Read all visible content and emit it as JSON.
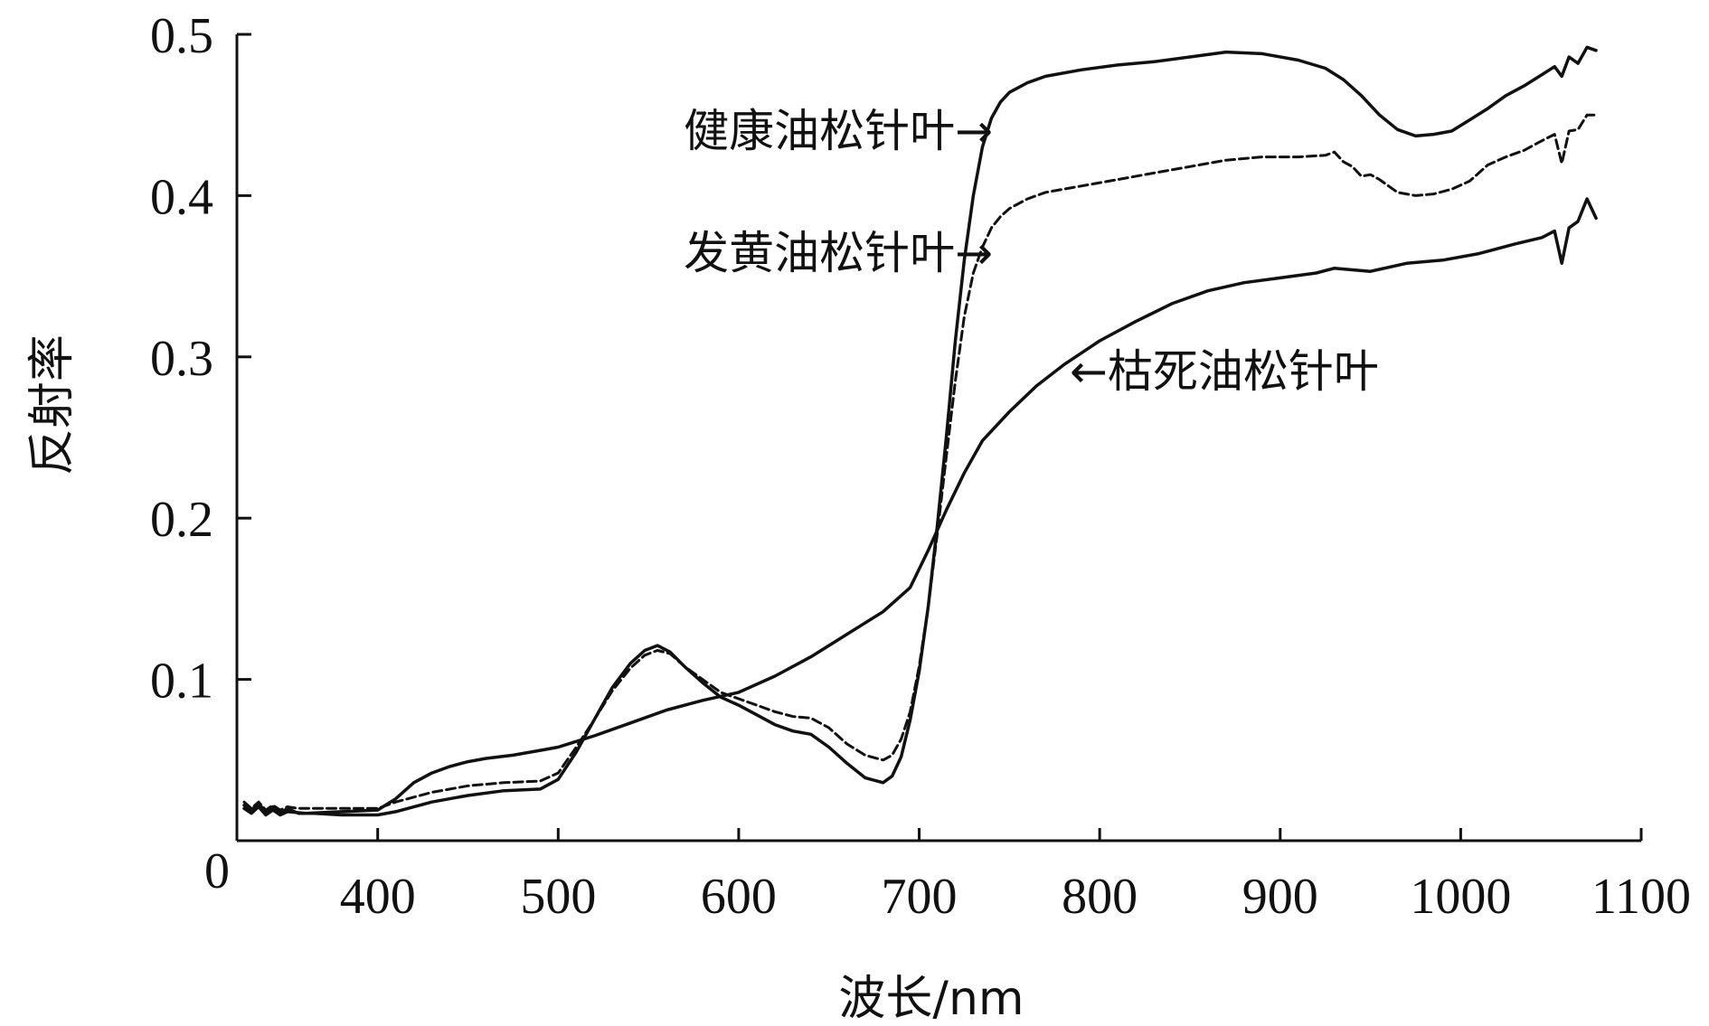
{
  "chart_data": {
    "type": "line",
    "title": "",
    "xlabel": "波长/nm",
    "ylabel": "反射率",
    "xlim": [
      322,
      1100
    ],
    "ylim": [
      0,
      0.5
    ],
    "origin_label": "0",
    "xticks": [
      400,
      500,
      600,
      700,
      800,
      900,
      1000,
      1100
    ],
    "xtick_labels": [
      "400",
      "500",
      "600",
      "700",
      "800",
      "900",
      "1000",
      "1100"
    ],
    "yticks": [
      0.1,
      0.2,
      0.3,
      0.4,
      0.5
    ],
    "ytick_labels": [
      "0.1",
      "0.2",
      "0.3",
      "0.4",
      "0.5"
    ],
    "series": [
      {
        "name": "健康油松针叶",
        "style": "solid",
        "annotation": "健康油松针叶→",
        "points": [
          [
            326,
            0.022
          ],
          [
            330,
            0.019
          ],
          [
            334,
            0.023
          ],
          [
            338,
            0.018
          ],
          [
            342,
            0.021
          ],
          [
            346,
            0.017
          ],
          [
            350,
            0.02
          ],
          [
            356,
            0.017
          ],
          [
            365,
            0.017
          ],
          [
            380,
            0.016
          ],
          [
            400,
            0.016
          ],
          [
            410,
            0.018
          ],
          [
            430,
            0.024
          ],
          [
            450,
            0.028
          ],
          [
            470,
            0.031
          ],
          [
            490,
            0.032
          ],
          [
            500,
            0.038
          ],
          [
            510,
            0.055
          ],
          [
            520,
            0.075
          ],
          [
            530,
            0.095
          ],
          [
            540,
            0.11
          ],
          [
            548,
            0.118
          ],
          [
            555,
            0.121
          ],
          [
            562,
            0.117
          ],
          [
            570,
            0.108
          ],
          [
            580,
            0.098
          ],
          [
            590,
            0.089
          ],
          [
            600,
            0.084
          ],
          [
            610,
            0.078
          ],
          [
            620,
            0.072
          ],
          [
            630,
            0.068
          ],
          [
            640,
            0.066
          ],
          [
            650,
            0.058
          ],
          [
            660,
            0.048
          ],
          [
            670,
            0.039
          ],
          [
            680,
            0.036
          ],
          [
            685,
            0.04
          ],
          [
            690,
            0.052
          ],
          [
            695,
            0.075
          ],
          [
            700,
            0.105
          ],
          [
            705,
            0.145
          ],
          [
            710,
            0.195
          ],
          [
            715,
            0.25
          ],
          [
            720,
            0.31
          ],
          [
            725,
            0.36
          ],
          [
            730,
            0.4
          ],
          [
            735,
            0.43
          ],
          [
            740,
            0.448
          ],
          [
            745,
            0.458
          ],
          [
            750,
            0.464
          ],
          [
            760,
            0.47
          ],
          [
            770,
            0.474
          ],
          [
            790,
            0.478
          ],
          [
            810,
            0.481
          ],
          [
            830,
            0.483
          ],
          [
            850,
            0.486
          ],
          [
            870,
            0.489
          ],
          [
            890,
            0.488
          ],
          [
            910,
            0.484
          ],
          [
            925,
            0.479
          ],
          [
            935,
            0.472
          ],
          [
            945,
            0.462
          ],
          [
            955,
            0.45
          ],
          [
            965,
            0.441
          ],
          [
            975,
            0.437
          ],
          [
            985,
            0.438
          ],
          [
            995,
            0.44
          ],
          [
            1005,
            0.447
          ],
          [
            1015,
            0.454
          ],
          [
            1025,
            0.462
          ],
          [
            1035,
            0.468
          ],
          [
            1045,
            0.475
          ],
          [
            1052,
            0.48
          ],
          [
            1056,
            0.474
          ],
          [
            1060,
            0.486
          ],
          [
            1065,
            0.482
          ],
          [
            1070,
            0.492
          ],
          [
            1075,
            0.49
          ]
        ]
      },
      {
        "name": "发黄油松针叶",
        "style": "dashed",
        "annotation": "发黄油松针叶→",
        "points": [
          [
            326,
            0.024
          ],
          [
            330,
            0.02
          ],
          [
            334,
            0.024
          ],
          [
            338,
            0.019
          ],
          [
            342,
            0.022
          ],
          [
            346,
            0.019
          ],
          [
            350,
            0.021
          ],
          [
            356,
            0.02
          ],
          [
            365,
            0.02
          ],
          [
            380,
            0.02
          ],
          [
            400,
            0.02
          ],
          [
            410,
            0.024
          ],
          [
            430,
            0.03
          ],
          [
            450,
            0.034
          ],
          [
            470,
            0.036
          ],
          [
            490,
            0.037
          ],
          [
            500,
            0.042
          ],
          [
            510,
            0.058
          ],
          [
            520,
            0.075
          ],
          [
            530,
            0.093
          ],
          [
            540,
            0.107
          ],
          [
            548,
            0.115
          ],
          [
            555,
            0.118
          ],
          [
            562,
            0.116
          ],
          [
            570,
            0.108
          ],
          [
            580,
            0.1
          ],
          [
            590,
            0.092
          ],
          [
            600,
            0.088
          ],
          [
            610,
            0.084
          ],
          [
            620,
            0.08
          ],
          [
            630,
            0.077
          ],
          [
            640,
            0.076
          ],
          [
            650,
            0.07
          ],
          [
            660,
            0.06
          ],
          [
            670,
            0.053
          ],
          [
            680,
            0.05
          ],
          [
            685,
            0.053
          ],
          [
            690,
            0.063
          ],
          [
            695,
            0.08
          ],
          [
            700,
            0.108
          ],
          [
            705,
            0.145
          ],
          [
            710,
            0.19
          ],
          [
            715,
            0.238
          ],
          [
            720,
            0.285
          ],
          [
            725,
            0.325
          ],
          [
            730,
            0.352
          ],
          [
            735,
            0.368
          ],
          [
            740,
            0.38
          ],
          [
            745,
            0.387
          ],
          [
            750,
            0.392
          ],
          [
            760,
            0.398
          ],
          [
            770,
            0.402
          ],
          [
            790,
            0.406
          ],
          [
            810,
            0.41
          ],
          [
            830,
            0.414
          ],
          [
            850,
            0.418
          ],
          [
            870,
            0.422
          ],
          [
            890,
            0.424
          ],
          [
            910,
            0.424
          ],
          [
            925,
            0.425
          ],
          [
            930,
            0.427
          ],
          [
            935,
            0.421
          ],
          [
            940,
            0.418
          ],
          [
            945,
            0.412
          ],
          [
            950,
            0.413
          ],
          [
            955,
            0.41
          ],
          [
            960,
            0.406
          ],
          [
            965,
            0.402
          ],
          [
            975,
            0.4
          ],
          [
            985,
            0.401
          ],
          [
            995,
            0.404
          ],
          [
            1005,
            0.409
          ],
          [
            1015,
            0.419
          ],
          [
            1025,
            0.424
          ],
          [
            1035,
            0.428
          ],
          [
            1045,
            0.434
          ],
          [
            1052,
            0.438
          ],
          [
            1056,
            0.42
          ],
          [
            1060,
            0.44
          ],
          [
            1065,
            0.441
          ],
          [
            1070,
            0.45
          ],
          [
            1075,
            0.45
          ]
        ]
      },
      {
        "name": "枯死油松针叶",
        "style": "solid",
        "annotation": "←枯死油松针叶",
        "points": [
          [
            326,
            0.02
          ],
          [
            330,
            0.017
          ],
          [
            334,
            0.021
          ],
          [
            338,
            0.016
          ],
          [
            342,
            0.019
          ],
          [
            346,
            0.016
          ],
          [
            350,
            0.018
          ],
          [
            360,
            0.017
          ],
          [
            380,
            0.018
          ],
          [
            400,
            0.019
          ],
          [
            410,
            0.026
          ],
          [
            420,
            0.036
          ],
          [
            430,
            0.042
          ],
          [
            440,
            0.046
          ],
          [
            450,
            0.049
          ],
          [
            460,
            0.051
          ],
          [
            475,
            0.053
          ],
          [
            490,
            0.056
          ],
          [
            500,
            0.058
          ],
          [
            520,
            0.065
          ],
          [
            540,
            0.073
          ],
          [
            560,
            0.081
          ],
          [
            580,
            0.087
          ],
          [
            600,
            0.092
          ],
          [
            620,
            0.102
          ],
          [
            640,
            0.114
          ],
          [
            660,
            0.128
          ],
          [
            680,
            0.142
          ],
          [
            695,
            0.157
          ],
          [
            705,
            0.18
          ],
          [
            715,
            0.205
          ],
          [
            725,
            0.228
          ],
          [
            735,
            0.248
          ],
          [
            750,
            0.266
          ],
          [
            765,
            0.282
          ],
          [
            780,
            0.295
          ],
          [
            800,
            0.31
          ],
          [
            820,
            0.322
          ],
          [
            840,
            0.333
          ],
          [
            860,
            0.341
          ],
          [
            880,
            0.346
          ],
          [
            900,
            0.349
          ],
          [
            920,
            0.352
          ],
          [
            930,
            0.355
          ],
          [
            950,
            0.353
          ],
          [
            970,
            0.358
          ],
          [
            990,
            0.36
          ],
          [
            1010,
            0.364
          ],
          [
            1030,
            0.37
          ],
          [
            1045,
            0.374
          ],
          [
            1052,
            0.378
          ],
          [
            1056,
            0.358
          ],
          [
            1060,
            0.38
          ],
          [
            1065,
            0.384
          ],
          [
            1070,
            0.398
          ],
          [
            1075,
            0.386
          ]
        ]
      }
    ]
  }
}
